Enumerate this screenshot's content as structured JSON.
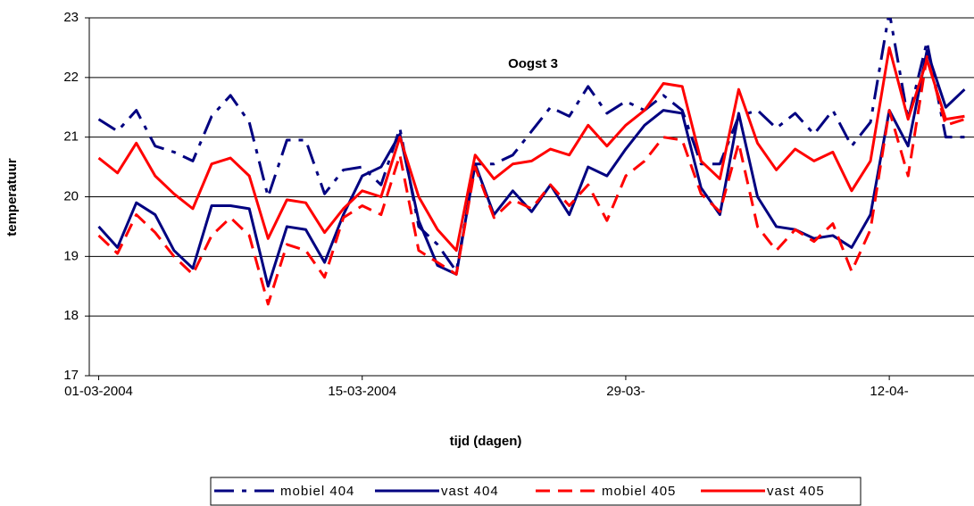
{
  "chart_data": {
    "type": "line",
    "title": "Oogst 3",
    "x_label": "tijd (dagen)",
    "y_label": "temperatuur",
    "categories": [
      "01-03-2004",
      null,
      null,
      null,
      null,
      null,
      null,
      null,
      null,
      null,
      null,
      null,
      null,
      null,
      "15-03-2004",
      null,
      null,
      null,
      null,
      null,
      null,
      null,
      null,
      null,
      null,
      null,
      null,
      null,
      "29-03-",
      null,
      null,
      null,
      null,
      null,
      null,
      null,
      null,
      null,
      null,
      null,
      null,
      null,
      "12-04-",
      null,
      null,
      null,
      null
    ],
    "ylim": [
      17,
      23
    ],
    "yticks": [
      17,
      18,
      19,
      20,
      21,
      22,
      23
    ],
    "grid": true,
    "legend": "bottom",
    "series": [
      {
        "name": "mobiel 404",
        "color": "#000080",
        "style": "dash-dot",
        "values": [
          21.3,
          21.1,
          21.45,
          20.85,
          20.75,
          20.6,
          21.35,
          21.7,
          21.25,
          20.0,
          20.95,
          20.95,
          20.05,
          20.45,
          20.5,
          20.2,
          21.15,
          19.5,
          19.2,
          18.75,
          20.55,
          20.55,
          20.7,
          21.1,
          21.5,
          21.35,
          21.85,
          21.4,
          21.6,
          21.45,
          21.7,
          21.45,
          20.55,
          20.55,
          21.35,
          21.45,
          21.15,
          21.4,
          21.05,
          21.45,
          20.85,
          21.25,
          23.1,
          21.3,
          22.6,
          21.0,
          21.0
        ]
      },
      {
        "name": "vast 404",
        "color": "#000080",
        "style": "solid",
        "values": [
          19.5,
          19.15,
          19.9,
          19.7,
          19.1,
          18.8,
          19.85,
          19.85,
          19.8,
          18.5,
          19.5,
          19.45,
          18.9,
          19.7,
          20.35,
          20.5,
          21.05,
          19.6,
          18.85,
          18.7,
          20.55,
          19.7,
          20.1,
          19.75,
          20.2,
          19.7,
          20.5,
          20.35,
          20.8,
          21.2,
          21.45,
          21.4,
          20.15,
          19.7,
          21.4,
          20.0,
          19.5,
          19.45,
          19.3,
          19.35,
          19.15,
          19.7,
          21.45,
          20.85,
          22.45,
          21.5,
          21.8
        ]
      },
      {
        "name": "mobiel 405",
        "color": "#ff0000",
        "style": "dash",
        "values": [
          19.35,
          19.05,
          19.7,
          19.4,
          19.0,
          18.7,
          19.35,
          19.65,
          19.35,
          18.2,
          19.2,
          19.1,
          18.65,
          19.65,
          19.85,
          19.7,
          20.7,
          19.1,
          18.9,
          18.7,
          20.5,
          19.65,
          19.95,
          19.8,
          20.2,
          19.85,
          20.2,
          19.6,
          20.35,
          20.6,
          21.0,
          20.95,
          20.05,
          19.75,
          20.9,
          19.5,
          19.1,
          19.45,
          19.25,
          19.55,
          18.75,
          19.45,
          21.45,
          20.35,
          22.35,
          21.2,
          21.3
        ]
      },
      {
        "name": "vast 405",
        "color": "#ff0000",
        "style": "solid",
        "values": [
          20.65,
          20.4,
          20.9,
          20.35,
          20.05,
          19.8,
          20.55,
          20.65,
          20.35,
          19.3,
          19.95,
          19.9,
          19.4,
          19.8,
          20.1,
          20.0,
          21.0,
          20.0,
          19.45,
          19.1,
          20.7,
          20.3,
          20.55,
          20.6,
          20.8,
          20.7,
          21.2,
          20.85,
          21.2,
          21.45,
          21.9,
          21.85,
          20.6,
          20.3,
          21.8,
          20.9,
          20.45,
          20.8,
          20.6,
          20.75,
          20.1,
          20.6,
          22.5,
          21.3,
          22.3,
          21.3,
          21.35
        ]
      }
    ]
  }
}
